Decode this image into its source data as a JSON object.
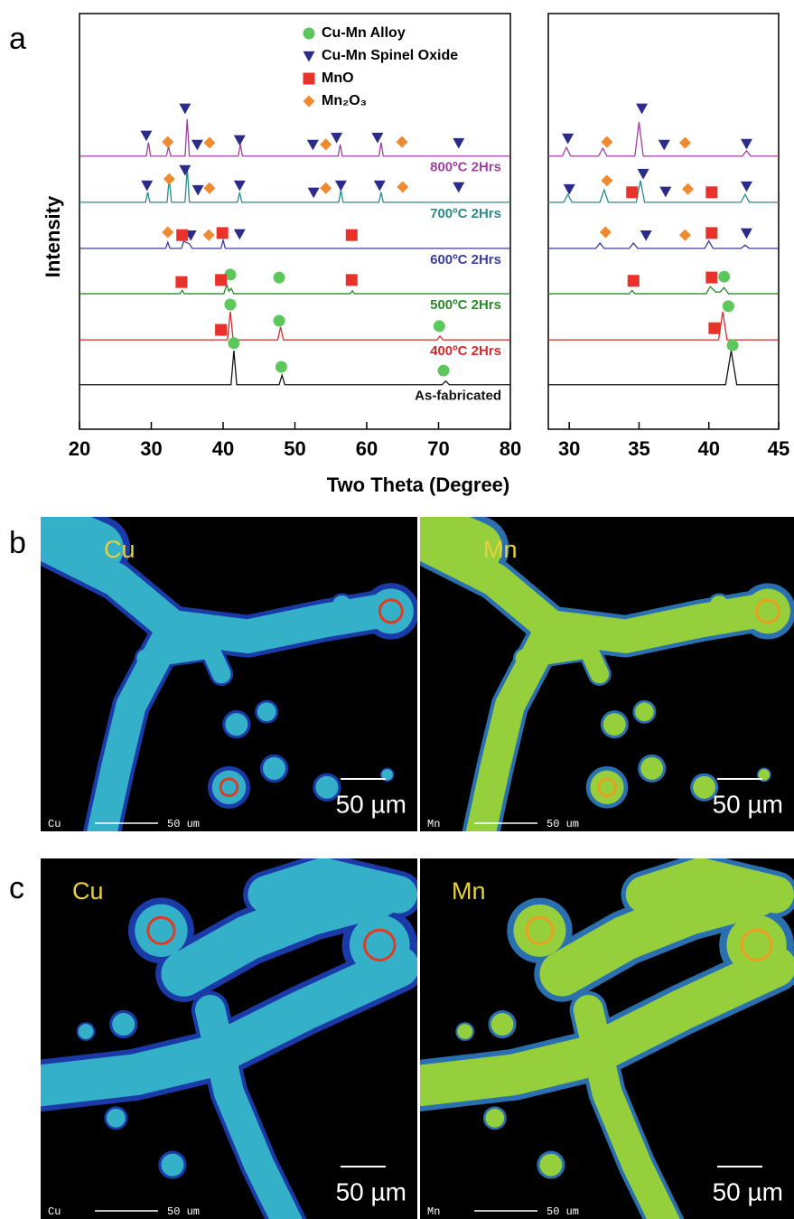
{
  "chart_data": [
    {
      "type": "line",
      "xlabel": "Two Theta (Degree)",
      "ylabel": "Intensity",
      "xlim": [
        20,
        80
      ],
      "xticks": [
        20,
        30,
        40,
        50,
        60,
        70,
        80
      ],
      "ylim": [
        0,
        100
      ],
      "series": [
        {
          "name": "As-fabricated",
          "color": "#111111",
          "x": [
            20,
            41.1,
            41.5,
            41.9,
            47.8,
            48.2,
            48.6,
            70.5,
            71,
            71.5,
            80
          ],
          "values": [
            10.7,
            10.7,
            18.9,
            10.7,
            10.7,
            13.0,
            10.7,
            10.7,
            11.6,
            10.7,
            10.7
          ]
        },
        {
          "name": "400ºC 2Hrs",
          "color": "#d62b2b",
          "x": [
            20,
            40.6,
            41,
            41.4,
            47.6,
            48,
            48.4,
            69.8,
            70.2,
            70.6,
            80
          ],
          "values": [
            21.5,
            21.5,
            28.3,
            21.5,
            21.5,
            24.6,
            21.5,
            21.5,
            22.4,
            21.5,
            21.5
          ]
        },
        {
          "name": "500ºC 2Hrs",
          "color": "#2a8a2a",
          "x": [
            20,
            34,
            34.3,
            34.6,
            40.1,
            40.5,
            40.8,
            41.1,
            41.5,
            57.7,
            58,
            58.3,
            80
          ],
          "values": [
            32.6,
            32.6,
            33.4,
            32.6,
            32.6,
            34.8,
            33.2,
            33.9,
            32.6,
            32.6,
            33.3,
            32.6,
            32.6
          ]
        },
        {
          "name": "600ºC 2Hrs",
          "color": "#3c3ca0",
          "x": [
            20,
            32,
            32.3,
            32.6,
            34.2,
            34.5,
            35.3,
            35.7,
            39.7,
            40,
            40.3,
            80
          ],
          "values": [
            43.5,
            43.5,
            45.0,
            43.5,
            43.5,
            45.2,
            44.6,
            43.5,
            43.5,
            45.5,
            43.5,
            43.5
          ]
        },
        {
          "name": "700ºC 2Hrs",
          "color": "#2a8c88",
          "x": [
            20,
            29.2,
            29.5,
            29.8,
            32.2,
            32.5,
            32.8,
            34.7,
            35,
            35.3,
            42,
            42.3,
            42.6,
            56.1,
            56.4,
            56.7,
            61.7,
            62,
            62.3,
            80
          ],
          "values": [
            54.6,
            54.6,
            57,
            54.6,
            54.6,
            60.5,
            54.6,
            54.6,
            63,
            54.6,
            54.6,
            57,
            54.6,
            54.6,
            57.5,
            54.6,
            54.6,
            57,
            54.6,
            54.6
          ]
        },
        {
          "name": "800ºC 2Hrs",
          "color": "#a040a0",
          "x": [
            20,
            29.3,
            29.6,
            29.9,
            32.1,
            32.4,
            32.7,
            34.7,
            35,
            35.3,
            42.1,
            42.4,
            42.7,
            56,
            56.3,
            56.6,
            61.7,
            62,
            62.3,
            80
          ],
          "values": [
            65.7,
            65.7,
            69,
            65.7,
            65.7,
            68,
            65.7,
            65.7,
            74.6,
            65.7,
            65.7,
            68.5,
            65.7,
            65.7,
            68.5,
            65.7,
            65.7,
            69,
            65.7,
            65.7
          ]
        }
      ],
      "markers": [
        {
          "name": "Cu-Mn Alloy",
          "color": "#5cc85c",
          "shape": "circle",
          "x": [
            41.0,
            47.8,
            41.0,
            47.8,
            70.1,
            41.5,
            48.1,
            70.7
          ],
          "y": [
            37.2,
            36.5,
            30.0,
            26.1,
            24.8,
            20.7,
            15.0,
            14.1
          ]
        },
        {
          "name": "Cu-Mn Spinel Oxide",
          "color": "#2b2b8a",
          "shape": "triangle",
          "x": [
            29.3,
            34.7,
            36.4,
            42.3,
            52.5,
            55.8,
            61.5,
            72.8,
            29.4,
            34.7,
            36.5,
            42.3,
            52.6,
            56.4,
            61.8,
            72.8,
            35.5,
            42.3
          ],
          "y": [
            70.7,
            77.2,
            68.5,
            69.6,
            68.5,
            70.2,
            70.2,
            68.9,
            58.7,
            62.4,
            57.6,
            58.7,
            57.0,
            58.7,
            58.7,
            58.3,
            46.7,
            47.0
          ]
        },
        {
          "name": "MnO",
          "color": "#e8322a",
          "shape": "square",
          "x": [
            34.3,
            39.9,
            57.9,
            34.2,
            39.7,
            57.9,
            39.7
          ],
          "y": [
            46.7,
            47.2,
            46.7,
            35.4,
            35.9,
            35.9,
            23.9
          ]
        },
        {
          "name": "Mn₂O₃",
          "color": "#f08a30",
          "shape": "diamond",
          "x": [
            32.3,
            38.1,
            54.3,
            64.9,
            32.5,
            38.1,
            54.3,
            65.0,
            32.3,
            38.0
          ],
          "y": [
            69.1,
            68.9,
            68.5,
            69.1,
            60.2,
            58.0,
            58.0,
            58.3,
            47.4,
            46.7
          ]
        }
      ]
    },
    {
      "type": "line",
      "xlim": [
        28.5,
        45
      ],
      "xticks": [
        30,
        35,
        40,
        45
      ],
      "ylim": [
        0,
        100
      ],
      "series": [
        {
          "color": "#111111",
          "x": [
            28.5,
            41.2,
            41.6,
            42.0,
            45
          ],
          "values": [
            10.7,
            10.7,
            18.9,
            10.7,
            10.7
          ]
        },
        {
          "color": "#d62b2b",
          "x": [
            28.5,
            40.7,
            41.0,
            41.3,
            45
          ],
          "values": [
            21.5,
            21.5,
            28.3,
            21.5,
            21.5
          ]
        },
        {
          "color": "#2a8a2a",
          "x": [
            28.5,
            34.3,
            34.5,
            34.7,
            39.8,
            40.1,
            40.5,
            40.8,
            41.1,
            41.4,
            45
          ],
          "values": [
            32.6,
            32.6,
            33.4,
            32.6,
            32.6,
            34.3,
            33,
            33,
            34.1,
            32.6,
            32.6
          ]
        },
        {
          "color": "#3c3ca0",
          "x": [
            28.5,
            31.9,
            32.2,
            32.5,
            34.3,
            34.6,
            34.9,
            39.7,
            40,
            40.3,
            42.3,
            42.6,
            42.9,
            45
          ],
          "values": [
            43.5,
            43.5,
            44.8,
            43.5,
            43.5,
            44.8,
            43.5,
            43.5,
            45.3,
            43.5,
            43.5,
            44.3,
            43.5,
            43.5
          ]
        },
        {
          "color": "#2a8c88",
          "x": [
            28.5,
            29.6,
            29.9,
            30.2,
            32.2,
            32.5,
            32.8,
            34.8,
            35.1,
            35.4,
            42.3,
            42.6,
            42.9,
            45
          ],
          "values": [
            54.6,
            54.6,
            56.5,
            54.6,
            54.6,
            57.6,
            54.6,
            54.6,
            59.8,
            54.6,
            54.6,
            56.5,
            54.6,
            54.6
          ]
        },
        {
          "color": "#a040a0",
          "x": [
            28.5,
            29.5,
            29.8,
            30.1,
            32.1,
            32.4,
            32.7,
            34.7,
            35,
            35.3,
            42.4,
            42.7,
            43,
            45
          ],
          "values": [
            65.7,
            65.7,
            67.8,
            65.7,
            65.7,
            67.6,
            65.7,
            65.7,
            73.9,
            65.7,
            65.7,
            67,
            65.7,
            65.7
          ]
        }
      ],
      "markers": [
        {
          "color": "#5cc85c",
          "shape": "circle",
          "x": [
            41.1,
            41.4,
            41.7
          ],
          "y": [
            36.7,
            29.6,
            20.2
          ]
        },
        {
          "color": "#2b2b8a",
          "shape": "triangle",
          "x": [
            29.9,
            35.2,
            36.8,
            42.7,
            30.0,
            35.3,
            36.9,
            42.7,
            35.5,
            42.7
          ],
          "y": [
            70.0,
            77.2,
            68.5,
            68.7,
            57.8,
            61.5,
            57.2,
            58.5,
            46.7,
            47.2
          ]
        },
        {
          "color": "#e8322a",
          "shape": "square",
          "x": [
            34.5,
            40.2,
            40.2,
            34.6,
            40.2,
            40.4
          ],
          "y": [
            57.0,
            57.0,
            47.2,
            35.7,
            36.5,
            24.3
          ]
        },
        {
          "color": "#f08a30",
          "shape": "diamond",
          "x": [
            32.7,
            38.3,
            32.7,
            38.5,
            32.6,
            38.3
          ],
          "y": [
            69.1,
            68.9,
            59.8,
            57.8,
            47.4,
            46.7
          ]
        }
      ]
    }
  ],
  "panel_labels": [
    "a",
    "b",
    "c"
  ],
  "maps": [
    {
      "images": [
        {
          "element": "Cu",
          "scale": "50 µm",
          "footer": "Cu",
          "footer_scale": "50 um"
        },
        {
          "element": "Mn",
          "scale": "50 µm",
          "footer": "Mn",
          "footer_scale": "50 um"
        }
      ]
    },
    {
      "images": [
        {
          "element": "Cu",
          "scale": "50 µm",
          "footer": "Cu",
          "footer_scale": "50 um"
        },
        {
          "element": "Mn",
          "scale": "50 µm",
          "footer": "Mn",
          "footer_scale": "50 um"
        }
      ]
    }
  ]
}
